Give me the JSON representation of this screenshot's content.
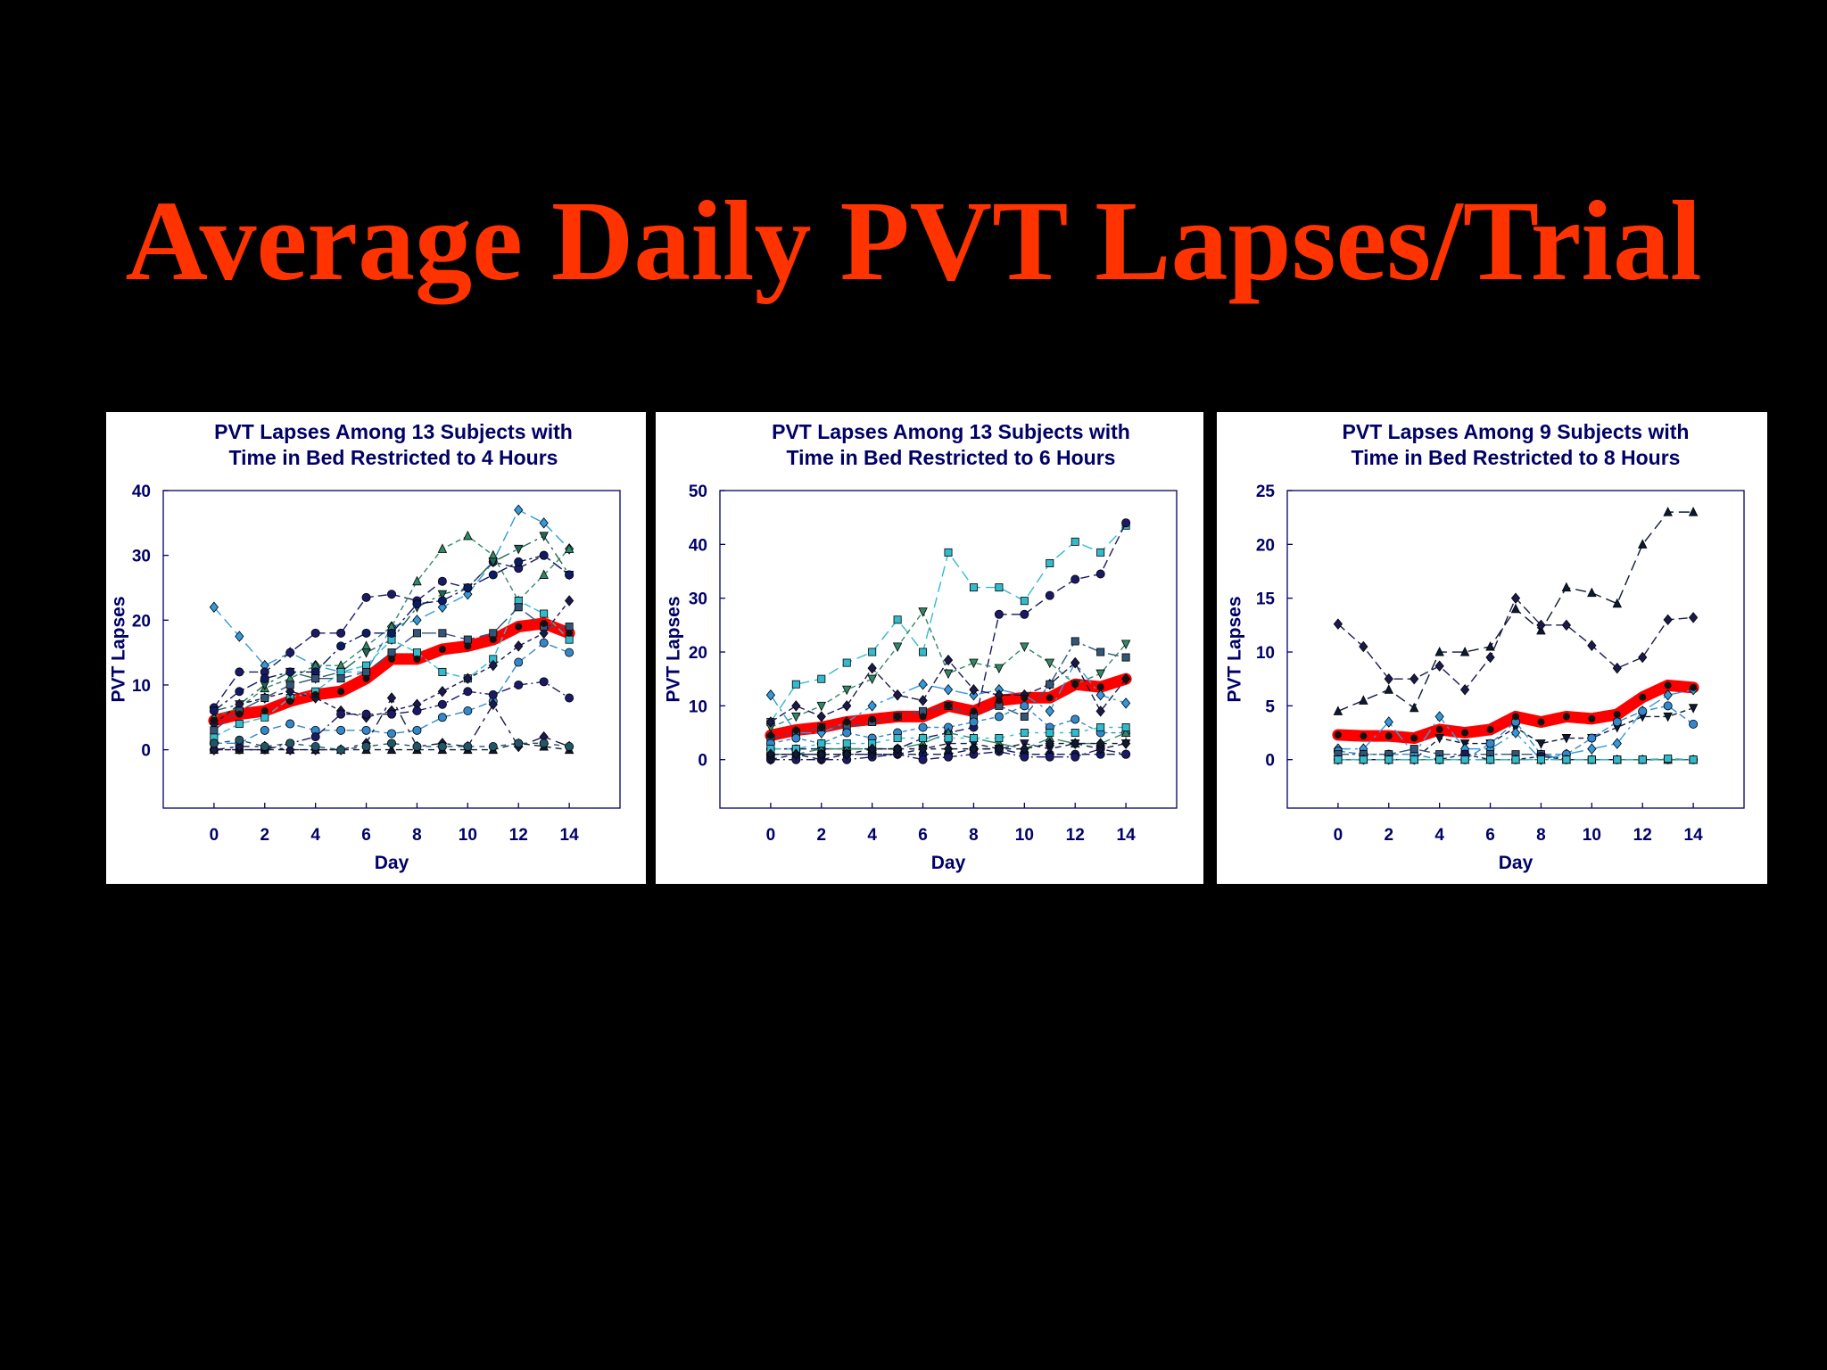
{
  "slide": {
    "title": "Average Daily PVT Lapses/Trial"
  },
  "colors": {
    "title": "#ff3300",
    "mean": "#ff0000",
    "axis_text": "#000066",
    "background": "#000000"
  },
  "chart_data": [
    {
      "type": "line",
      "title": [
        "PVT Lapses Among 13 Subjects with",
        "Time in Bed Restricted to 4 Hours"
      ],
      "xlabel": "Day",
      "ylabel": "PVT Lapses",
      "xlim": [
        -2,
        16
      ],
      "ylim": [
        -9,
        40
      ],
      "xticks": [
        0,
        2,
        4,
        6,
        8,
        10,
        12,
        14
      ],
      "yticks": [
        0,
        10,
        20,
        30,
        40
      ],
      "mean": {
        "x": [
          0,
          1,
          2,
          3,
          4,
          5,
          6,
          7,
          8,
          9,
          10,
          11,
          12,
          13,
          14
        ],
        "values": [
          4.5,
          5.5,
          6,
          7.5,
          8.5,
          9,
          11,
          14,
          14,
          15.5,
          16,
          17,
          19,
          19.5,
          18
        ]
      },
      "series": [
        {
          "marker": "diamond",
          "color": "#3399dd",
          "values": [
            22,
            17.5,
            13,
            15,
            13,
            12,
            12,
            19,
            20,
            22,
            24,
            29,
            37,
            35,
            31
          ]
        },
        {
          "marker": "circle",
          "color": "#1a1a66",
          "values": [
            6.5,
            12,
            12,
            15,
            18,
            18,
            23.5,
            24,
            23,
            26,
            25,
            29,
            28,
            30,
            27
          ]
        },
        {
          "marker": "triangle-up",
          "color": "#338866",
          "values": [
            5,
            6.5,
            9.5,
            11,
            13,
            13,
            16,
            19,
            26,
            31,
            33,
            30,
            23,
            27,
            31
          ]
        },
        {
          "marker": "triangle-down",
          "color": "#226655",
          "values": [
            6,
            7,
            10,
            12,
            11,
            12,
            15,
            17,
            22,
            24,
            25,
            29,
            31,
            33,
            27
          ]
        },
        {
          "marker": "square",
          "color": "#33bbcc",
          "values": [
            2,
            4,
            5,
            8,
            9,
            12,
            13,
            17,
            15,
            12,
            11,
            14,
            23,
            21,
            17
          ]
        },
        {
          "marker": "circle",
          "color": "#0d1a66",
          "values": [
            6,
            9,
            11,
            12,
            12,
            16,
            18,
            18,
            22.5,
            23,
            25,
            27,
            29,
            30,
            27
          ]
        },
        {
          "marker": "diamond",
          "color": "#1a1a4d",
          "values": [
            4,
            7,
            8,
            9,
            8,
            6,
            5,
            6,
            7,
            9,
            11,
            13,
            16,
            18,
            23
          ]
        },
        {
          "marker": "square",
          "color": "#335577",
          "values": [
            3,
            6,
            8,
            10,
            11,
            11,
            12,
            15,
            18,
            18,
            17,
            18,
            22,
            19,
            19
          ]
        },
        {
          "marker": "circle",
          "color": "#3388cc",
          "values": [
            1,
            1,
            3,
            4,
            3,
            3,
            3,
            2.5,
            3,
            5,
            6,
            7.5,
            13.5,
            16.5,
            15
          ]
        },
        {
          "marker": "circle",
          "color": "#1a1a66",
          "values": [
            0,
            0,
            0,
            1,
            2,
            5.5,
            5.5,
            5.5,
            6,
            7,
            9,
            8.5,
            10,
            10.5,
            8
          ]
        },
        {
          "marker": "triangle-up",
          "color": "#0d1a33",
          "values": [
            0,
            0,
            0,
            0,
            0,
            0,
            0,
            0,
            0,
            0,
            0,
            0,
            1,
            0.5,
            0
          ]
        },
        {
          "marker": "diamond",
          "color": "#1a1a4d",
          "values": [
            0,
            0.5,
            0.5,
            0,
            0,
            0,
            1,
            8,
            0.5,
            1,
            0.5,
            7,
            0.5,
            2,
            0.5
          ]
        },
        {
          "marker": "circle",
          "color": "#225566",
          "values": [
            1,
            1.5,
            0.5,
            1,
            0.5,
            0,
            0.5,
            1,
            0.5,
            0.5,
            0.5,
            0.5,
            1,
            1,
            0.5
          ]
        }
      ]
    },
    {
      "type": "line",
      "title": [
        "PVT Lapses Among 13 Subjects with",
        "Time in Bed Restricted to 6 Hours"
      ],
      "xlabel": "Day",
      "ylabel": "PVT Lapses",
      "xlim": [
        -2,
        16
      ],
      "ylim": [
        -9,
        50
      ],
      "xticks": [
        0,
        2,
        4,
        6,
        8,
        10,
        12,
        14
      ],
      "yticks": [
        0,
        10,
        20,
        30,
        40,
        50
      ],
      "mean": {
        "x": [
          0,
          1,
          2,
          3,
          4,
          5,
          6,
          7,
          8,
          9,
          10,
          11,
          12,
          13,
          14
        ],
        "values": [
          4.5,
          5.5,
          6,
          7,
          7.5,
          8,
          8,
          10,
          9,
          11,
          11.5,
          11.5,
          14,
          13.5,
          15
        ]
      },
      "series": [
        {
          "marker": "square",
          "color": "#33bbcc",
          "values": [
            7,
            14,
            15,
            18,
            20,
            26,
            20,
            38.5,
            32,
            32,
            29.5,
            36.5,
            40.5,
            38.5,
            43.5
          ]
        },
        {
          "marker": "circle",
          "color": "#1a1a66",
          "values": [
            2,
            2,
            2,
            2,
            2,
            2,
            4,
            5,
            6,
            27,
            27,
            30.5,
            33.5,
            34.5,
            44
          ]
        },
        {
          "marker": "triangle-down",
          "color": "#338866",
          "values": [
            6,
            8,
            10,
            13,
            15,
            21,
            27.5,
            16,
            18,
            17,
            21,
            18,
            14,
            16,
            21.5
          ]
        },
        {
          "marker": "diamond",
          "color": "#3399dd",
          "values": [
            12,
            5,
            5,
            7,
            10,
            12,
            14,
            13,
            12,
            13,
            12,
            9,
            18,
            12,
            10.5
          ]
        },
        {
          "marker": "diamond",
          "color": "#1a1a4d",
          "values": [
            7,
            10,
            8,
            10,
            17,
            12,
            11,
            18.5,
            13,
            12,
            12,
            14,
            18,
            9,
            15
          ]
        },
        {
          "marker": "square",
          "color": "#335577",
          "values": [
            4,
            5,
            6,
            6,
            7,
            8,
            9,
            10,
            8,
            10,
            8,
            14,
            22,
            20,
            19
          ]
        },
        {
          "marker": "circle",
          "color": "#3388cc",
          "values": [
            3,
            4,
            3,
            5,
            4,
            5,
            6,
            6,
            7,
            8,
            10,
            6,
            7.5,
            5,
            5
          ]
        },
        {
          "marker": "triangle-up",
          "color": "#338866",
          "values": [
            1,
            1,
            2,
            2,
            2,
            2,
            3,
            5,
            4,
            3,
            2,
            4,
            3,
            3,
            5
          ]
        },
        {
          "marker": "circle",
          "color": "#0d1a66",
          "values": [
            1,
            1,
            1,
            1,
            1,
            1,
            1,
            1,
            2,
            2,
            1,
            1,
            1,
            1,
            1
          ]
        },
        {
          "marker": "circle",
          "color": "#1a1a66",
          "values": [
            0,
            0,
            0,
            0,
            0.5,
            1,
            0,
            0.5,
            1,
            1.5,
            0.5,
            0.5,
            0.5,
            2,
            1
          ]
        },
        {
          "marker": "triangle-down",
          "color": "#1a1a4d",
          "values": [
            0,
            1,
            0,
            1,
            1,
            1,
            2,
            3,
            3,
            2,
            3,
            2,
            3,
            2,
            3
          ]
        },
        {
          "marker": "square",
          "color": "#33bbcc",
          "values": [
            2,
            2,
            3,
            3,
            3,
            4,
            4,
            4,
            4,
            4,
            5,
            5,
            5,
            6,
            6
          ]
        },
        {
          "marker": "diamond",
          "color": "#0d1a33",
          "values": [
            1,
            1,
            1,
            1,
            2,
            2,
            2,
            2,
            2,
            2,
            2,
            3,
            3,
            3,
            3
          ]
        }
      ]
    },
    {
      "type": "line",
      "title": [
        "PVT Lapses Among 9 Subjects with",
        "Time in Bed Restricted to 8 Hours"
      ],
      "xlabel": "Day",
      "ylabel": "PVT Lapses",
      "xlim": [
        -2,
        16
      ],
      "ylim": [
        -4.5,
        25
      ],
      "xticks": [
        0,
        2,
        4,
        6,
        8,
        10,
        12,
        14
      ],
      "yticks": [
        0,
        5,
        10,
        15,
        20,
        25
      ],
      "mean": {
        "x": [
          0,
          1,
          2,
          3,
          4,
          5,
          6,
          7,
          8,
          9,
          10,
          11,
          12,
          13,
          14
        ],
        "values": [
          2.3,
          2.2,
          2.2,
          2,
          2.8,
          2.5,
          2.8,
          4,
          3.5,
          4,
          3.8,
          4.2,
          5.8,
          6.9,
          6.7
        ]
      },
      "series": [
        {
          "marker": "triangle-up",
          "color": "#0d1a33",
          "values": [
            4.5,
            5.5,
            6.5,
            4.8,
            10,
            10,
            10.5,
            14,
            12,
            16,
            15.5,
            14.5,
            20,
            23,
            23
          ]
        },
        {
          "marker": "diamond",
          "color": "#1a1a4d",
          "values": [
            12.6,
            10.5,
            7.5,
            7.5,
            8.7,
            6.5,
            9.5,
            15,
            12.5,
            12.5,
            10.6,
            8.5,
            9.5,
            13,
            13.2
          ]
        },
        {
          "marker": "triangle-down",
          "color": "#0d1a33",
          "values": [
            0,
            0,
            0,
            0,
            2,
            1.5,
            1.5,
            3,
            1.5,
            2,
            2,
            3,
            4,
            4,
            4.8
          ]
        },
        {
          "marker": "diamond",
          "color": "#3399dd",
          "values": [
            1,
            1,
            3.5,
            0.5,
            4,
            1,
            1,
            2.5,
            0,
            0.5,
            1,
            1.5,
            4.5,
            6,
            6.5
          ]
        },
        {
          "marker": "circle",
          "color": "#3388cc",
          "values": [
            0.8,
            0.5,
            0.5,
            0.5,
            0,
            0,
            1.5,
            3.5,
            0.5,
            0.5,
            2,
            3.5,
            4.5,
            5,
            3.3
          ]
        },
        {
          "marker": "square",
          "color": "#335577",
          "values": [
            0.5,
            0.5,
            0.5,
            1,
            0.5,
            0.5,
            0.5,
            0.5,
            0.5,
            0,
            0,
            0,
            0,
            0,
            0
          ]
        },
        {
          "marker": "circle",
          "color": "#1a1a66",
          "values": [
            0,
            0,
            0,
            0,
            0,
            0.5,
            0,
            0,
            0.3,
            0,
            0,
            0,
            0,
            0,
            0
          ]
        },
        {
          "marker": "triangle-up",
          "color": "#338866",
          "values": [
            0,
            0,
            0,
            0,
            0,
            0,
            0,
            0,
            0,
            0,
            0,
            0,
            0,
            0,
            0
          ]
        },
        {
          "marker": "square",
          "color": "#33bbcc",
          "values": [
            0,
            0,
            0,
            0,
            0,
            0,
            0,
            0,
            0,
            0,
            0,
            0,
            0,
            0.1,
            0
          ]
        }
      ]
    }
  ]
}
